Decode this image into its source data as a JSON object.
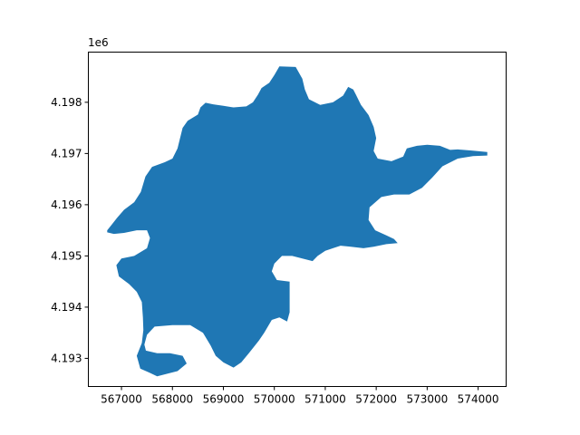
{
  "chart_data": {
    "type": "polygon-map",
    "title": "",
    "xlabel": "",
    "ylabel": "",
    "y_offset_label": "1e6",
    "xlim": [
      566350,
      574550
    ],
    "ylim": [
      4192450,
      4198980
    ],
    "x_ticks": [
      {
        "value": 567000,
        "label": "567000"
      },
      {
        "value": 568000,
        "label": "568000"
      },
      {
        "value": 569000,
        "label": "569000"
      },
      {
        "value": 570000,
        "label": "570000"
      },
      {
        "value": 571000,
        "label": "571000"
      },
      {
        "value": 572000,
        "label": "572000"
      },
      {
        "value": 573000,
        "label": "573000"
      },
      {
        "value": 574000,
        "label": "574000"
      }
    ],
    "y_ticks": [
      {
        "value": 4193000,
        "label": "4.193"
      },
      {
        "value": 4194000,
        "label": "4.194"
      },
      {
        "value": 4195000,
        "label": "4.195"
      },
      {
        "value": 4196000,
        "label": "4.196"
      },
      {
        "value": 4197000,
        "label": "4.197"
      },
      {
        "value": 4198000,
        "label": "4.198"
      }
    ],
    "grid": false,
    "legend": "none",
    "fill_color": "#1f77b4",
    "polygon": [
      [
        566720,
        4195500
      ],
      [
        566800,
        4195600
      ],
      [
        566920,
        4195750
      ],
      [
        567050,
        4195900
      ],
      [
        567250,
        4196050
      ],
      [
        567380,
        4196250
      ],
      [
        567470,
        4196550
      ],
      [
        567600,
        4196740
      ],
      [
        567850,
        4196830
      ],
      [
        568000,
        4196900
      ],
      [
        568100,
        4197100
      ],
      [
        568150,
        4197300
      ],
      [
        568200,
        4197500
      ],
      [
        568300,
        4197640
      ],
      [
        568500,
        4197760
      ],
      [
        568550,
        4197900
      ],
      [
        568650,
        4197990
      ],
      [
        568800,
        4197960
      ],
      [
        569000,
        4197930
      ],
      [
        569200,
        4197900
      ],
      [
        569450,
        4197920
      ],
      [
        569580,
        4198000
      ],
      [
        569680,
        4198150
      ],
      [
        569750,
        4198280
      ],
      [
        569900,
        4198380
      ],
      [
        570000,
        4198530
      ],
      [
        570100,
        4198700
      ],
      [
        570420,
        4198690
      ],
      [
        570550,
        4198460
      ],
      [
        570600,
        4198250
      ],
      [
        570680,
        4198060
      ],
      [
        570900,
        4197950
      ],
      [
        571150,
        4198000
      ],
      [
        571350,
        4198130
      ],
      [
        571450,
        4198300
      ],
      [
        571550,
        4198250
      ],
      [
        571600,
        4198150
      ],
      [
        571700,
        4197950
      ],
      [
        571850,
        4197750
      ],
      [
        571950,
        4197520
      ],
      [
        572000,
        4197300
      ],
      [
        571950,
        4197050
      ],
      [
        572030,
        4196900
      ],
      [
        572300,
        4196850
      ],
      [
        572530,
        4196940
      ],
      [
        572600,
        4197100
      ],
      [
        572800,
        4197150
      ],
      [
        573000,
        4197170
      ],
      [
        573250,
        4197150
      ],
      [
        573450,
        4197070
      ],
      [
        573600,
        4197080
      ],
      [
        573850,
        4197060
      ],
      [
        574180,
        4197030
      ],
      [
        574180,
        4196960
      ],
      [
        573900,
        4196950
      ],
      [
        573600,
        4196900
      ],
      [
        573300,
        4196750
      ],
      [
        573100,
        4196530
      ],
      [
        572900,
        4196330
      ],
      [
        572650,
        4196200
      ],
      [
        572350,
        4196200
      ],
      [
        572100,
        4196150
      ],
      [
        571870,
        4195950
      ],
      [
        571850,
        4195700
      ],
      [
        571980,
        4195500
      ],
      [
        572200,
        4195400
      ],
      [
        572350,
        4195330
      ],
      [
        572420,
        4195250
      ],
      [
        572200,
        4195230
      ],
      [
        571950,
        4195180
      ],
      [
        571750,
        4195150
      ],
      [
        571500,
        4195180
      ],
      [
        571300,
        4195200
      ],
      [
        571150,
        4195150
      ],
      [
        571000,
        4195100
      ],
      [
        570850,
        4195000
      ],
      [
        570750,
        4194900
      ],
      [
        570550,
        4194950
      ],
      [
        570350,
        4195000
      ],
      [
        570150,
        4195000
      ],
      [
        570000,
        4194850
      ],
      [
        569950,
        4194700
      ],
      [
        570050,
        4194530
      ],
      [
        570300,
        4194500
      ],
      [
        570300,
        4194200
      ],
      [
        570300,
        4193900
      ],
      [
        570250,
        4193720
      ],
      [
        570100,
        4193800
      ],
      [
        569950,
        4193750
      ],
      [
        569800,
        4193500
      ],
      [
        569700,
        4193350
      ],
      [
        569500,
        4193100
      ],
      [
        569350,
        4192920
      ],
      [
        569200,
        4192820
      ],
      [
        569000,
        4192920
      ],
      [
        568850,
        4193050
      ],
      [
        568750,
        4193250
      ],
      [
        568600,
        4193500
      ],
      [
        568350,
        4193650
      ],
      [
        568000,
        4193650
      ],
      [
        567650,
        4193620
      ],
      [
        567500,
        4193460
      ],
      [
        567450,
        4193270
      ],
      [
        567480,
        4193150
      ],
      [
        567700,
        4193100
      ],
      [
        567950,
        4193100
      ],
      [
        568200,
        4193050
      ],
      [
        568280,
        4192900
      ],
      [
        568100,
        4192750
      ],
      [
        567900,
        4192700
      ],
      [
        567700,
        4192650
      ],
      [
        567550,
        4192720
      ],
      [
        567370,
        4192800
      ],
      [
        567300,
        4193050
      ],
      [
        567400,
        4193300
      ],
      [
        567430,
        4193550
      ],
      [
        567420,
        4193800
      ],
      [
        567400,
        4194100
      ],
      [
        567300,
        4194300
      ],
      [
        567150,
        4194450
      ],
      [
        566950,
        4194600
      ],
      [
        566900,
        4194820
      ],
      [
        567000,
        4194950
      ],
      [
        567250,
        4195000
      ],
      [
        567500,
        4195150
      ],
      [
        567560,
        4195350
      ],
      [
        567500,
        4195500
      ],
      [
        567300,
        4195500
      ],
      [
        567050,
        4195450
      ],
      [
        566850,
        4195430
      ],
      [
        566720,
        4195460
      ]
    ]
  }
}
